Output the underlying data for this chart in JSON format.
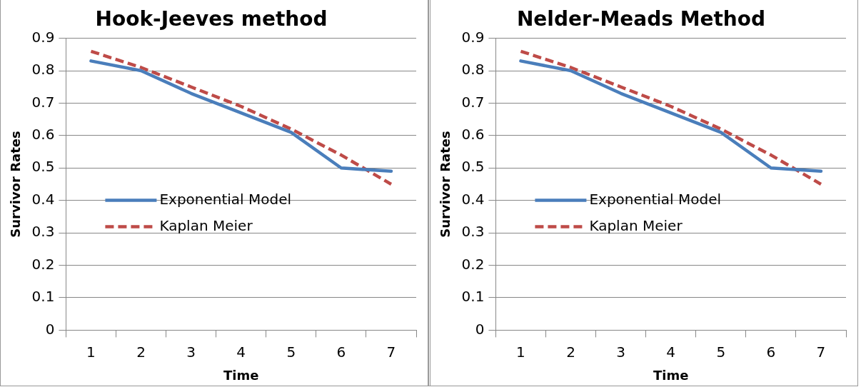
{
  "chart_data": [
    {
      "type": "line",
      "title": "Hook-Jeeves method",
      "xlabel": "Time",
      "ylabel": "Survivor Rates",
      "categories": [
        "1",
        "2",
        "3",
        "4",
        "5",
        "6",
        "7"
      ],
      "series": [
        {
          "name": "Exponential Model",
          "color": "#4a7ebb",
          "values": [
            0.83,
            0.8,
            0.73,
            0.67,
            0.61,
            0.5,
            0.49
          ],
          "line_style": "solid"
        },
        {
          "name": "Kaplan Meier",
          "color": "#be4b48",
          "values": [
            0.86,
            0.81,
            0.75,
            0.69,
            0.62,
            0.54,
            0.45
          ],
          "line_style": "dashed"
        }
      ],
      "ylim": [
        0,
        0.9
      ],
      "yticks": [
        0,
        0.1,
        0.2,
        0.3,
        0.4,
        0.5,
        0.6,
        0.7,
        0.8,
        0.9
      ],
      "grid": "y",
      "legend": "left",
      "marker": "none"
    },
    {
      "type": "line",
      "title": "Nelder-Meads Method",
      "xlabel": "Time",
      "ylabel": "Survivor Rates",
      "categories": [
        "1",
        "2",
        "3",
        "4",
        "5",
        "6",
        "7"
      ],
      "series": [
        {
          "name": "Exponential Model",
          "color": "#4a7ebb",
          "values": [
            0.83,
            0.8,
            0.73,
            0.67,
            0.61,
            0.5,
            0.49
          ],
          "line_style": "solid"
        },
        {
          "name": "Kaplan Meier",
          "color": "#be4b48",
          "values": [
            0.86,
            0.81,
            0.75,
            0.69,
            0.62,
            0.54,
            0.45
          ],
          "line_style": "dashed"
        }
      ],
      "ylim": [
        0,
        0.9
      ],
      "yticks": [
        0,
        0.1,
        0.2,
        0.3,
        0.4,
        0.5,
        0.6,
        0.7,
        0.8,
        0.9
      ],
      "grid": "y",
      "legend": "left",
      "marker": "none"
    }
  ]
}
